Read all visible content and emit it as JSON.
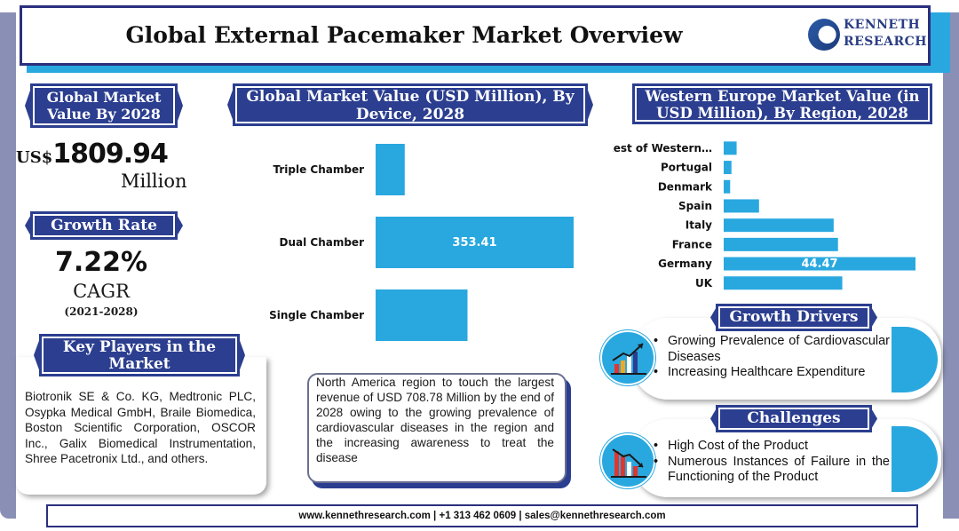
{
  "header": {
    "title": "Global External Pacemaker Market Overview",
    "logo_line1": "KENNETH",
    "logo_line2": "RESEARCH"
  },
  "market_value": {
    "banner": "Global Market Value By 2028",
    "currency": "US$",
    "amount": "1809.94",
    "unit": "Million"
  },
  "growth": {
    "banner": "Growth Rate",
    "value": "7.22%",
    "label": "CAGR",
    "period": "(2021-2028)"
  },
  "players": {
    "banner": "Key Players in the Market",
    "text": "Biotronik SE & Co. KG, Medtronic PLC, Osypka Medical GmbH, Braile Biomedica, Boston Scientific Corporation, OSCOR Inc., Galix Biomedical Instrumentation, Shree Pacetronix Ltd., and others."
  },
  "north_america": {
    "text": "North America region to touch the largest revenue of USD 708.78 Million by the end of 2028 owing to the growing prevalence of cardiovascular diseases in the region and the increasing awareness to treat the disease"
  },
  "drivers": {
    "banner": "Growth Drivers",
    "items": [
      "Growing Prevalence of Cardiovascular Diseases",
      "Increasing Healthcare Expenditure"
    ]
  },
  "challenges": {
    "banner": "Challenges",
    "items": [
      "High Cost of the Product",
      "Numerous Instances of Failure in the Functioning of the Product"
    ]
  },
  "footer": {
    "text": "www.kennethresearch.com | +1 313 462 0609 | sales@kennethresearch.com"
  },
  "colors": {
    "bar": "#29a8e0",
    "banner": "#2b3e8f"
  },
  "chart_data": [
    {
      "type": "bar",
      "orientation": "horizontal",
      "title": "Global Market Value (USD Million), By Device, 2028",
      "categories": [
        "Triple Chamber",
        "Dual Chamber",
        "Single Chamber"
      ],
      "values": [
        52,
        353.41,
        164
      ],
      "data_labels": [
        "",
        "353.41",
        ""
      ],
      "grid": false,
      "legend": "none"
    },
    {
      "type": "bar",
      "orientation": "horizontal",
      "title": "Western Europe Market Value (in USD Million), By Region, 2028",
      "categories": [
        "Rest of Western…",
        "Portugal",
        "Denmark",
        "Spain",
        "Italy",
        "France",
        "Germany",
        "UK"
      ],
      "values": [
        3.0,
        1.8,
        1.5,
        8.2,
        25.5,
        26.5,
        44.47,
        27.5
      ],
      "data_labels": [
        "",
        "",
        "",
        "",
        "",
        "",
        "44.47",
        ""
      ],
      "grid": false,
      "legend": "none"
    }
  ]
}
